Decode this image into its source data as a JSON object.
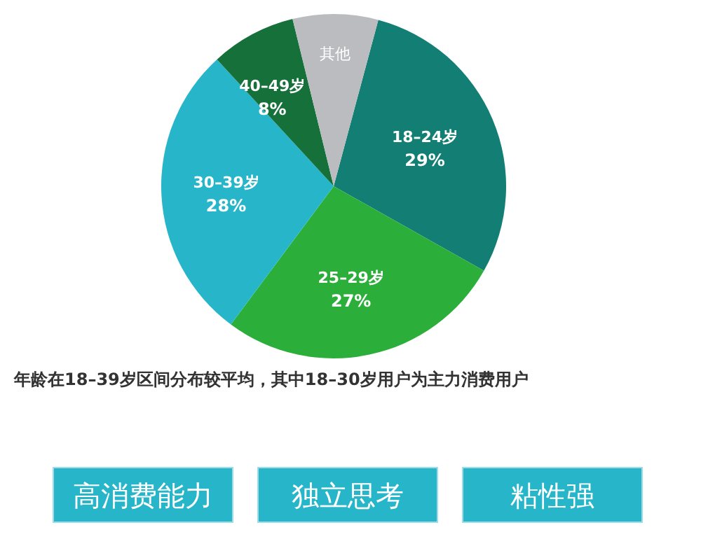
{
  "chart_data": {
    "type": "pie",
    "categories": [
      "18–24岁",
      "25–29岁",
      "30–39岁",
      "40–49岁",
      "其他"
    ],
    "values": [
      29,
      27,
      28,
      8,
      8
    ],
    "colors": [
      "#137f74",
      "#2caf3a",
      "#27b6c9",
      "#16703a",
      "#bbbcc0"
    ],
    "value_labels": [
      "29%",
      "27%",
      "28%",
      "8%",
      null
    ],
    "annotations": [
      "年龄在18–39岁区间分布较平均，其中18–30岁用户为主力消费用户",
      "高消费能力",
      "独立思考",
      "粘性强"
    ]
  }
}
